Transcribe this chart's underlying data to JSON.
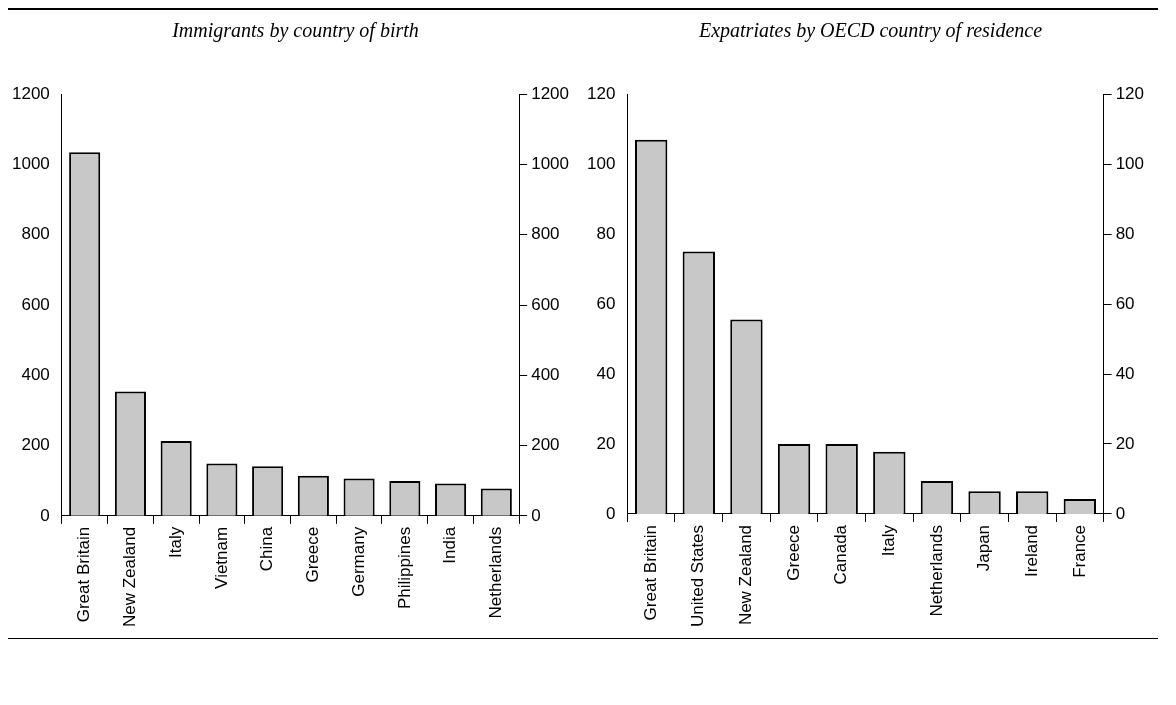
{
  "chart_data": [
    {
      "type": "bar",
      "title": "Immigrants by country of birth",
      "categories": [
        "Great Britain",
        "New Zealand",
        "Italy",
        "Vietnam",
        "China",
        "Greece",
        "Germany",
        "Philippines",
        "India",
        "Netherlands"
      ],
      "values": [
        1035,
        354,
        213,
        149,
        141,
        114,
        106,
        99,
        92,
        78
      ],
      "color": "#c8c8c8",
      "ylim": [
        0,
        1200
      ],
      "yticks": [
        0,
        200,
        400,
        600,
        800,
        1000,
        1200
      ],
      "y2lim": [
        0,
        1200
      ],
      "y2ticks": [
        0,
        200,
        400,
        600,
        800,
        1000,
        1200
      ]
    },
    {
      "type": "bar",
      "title": "Expatriates by OECD country of residence",
      "categories": [
        "Great Britain",
        "United States",
        "New Zealand",
        "Greece",
        "Canada",
        "Italy",
        "Netherlands",
        "Japan",
        "Ireland",
        "France"
      ],
      "values": [
        107,
        75,
        55.6,
        20,
        20,
        17.8,
        9.4,
        6.5,
        6.5,
        4.3
      ],
      "color": "#c8c8c8",
      "ylim": [
        0,
        120
      ],
      "yticks": [
        0,
        20,
        40,
        60,
        80,
        100,
        120
      ],
      "y2lim": [
        0,
        120
      ],
      "y2ticks": [
        0,
        20,
        40,
        60,
        80,
        100,
        120
      ]
    }
  ]
}
